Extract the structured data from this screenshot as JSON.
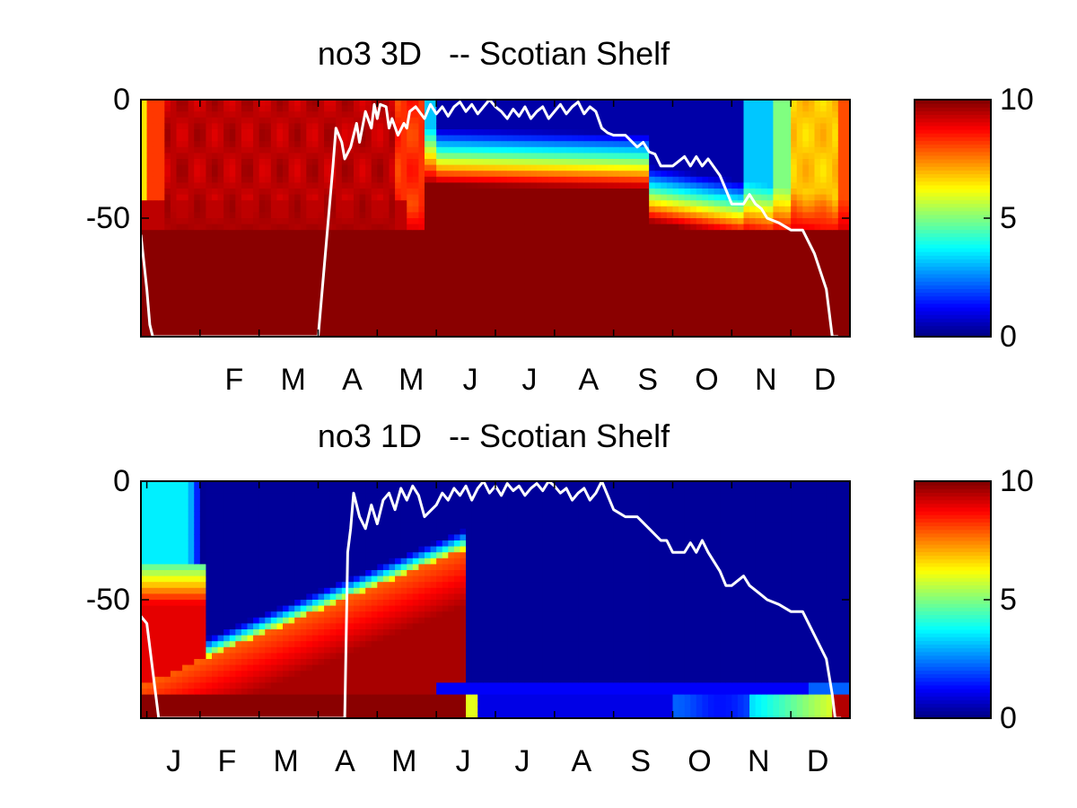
{
  "chart_data": [
    {
      "type": "heatmap",
      "title": "no3 3D   -- Scotian Shelf",
      "ytick_labels": [
        "0",
        "-50"
      ],
      "yticks": [
        0,
        -50
      ],
      "ylim": [
        -100,
        0
      ],
      "xtick_labels": [
        "F",
        "M",
        "A",
        "M",
        "J",
        "J",
        "A",
        "S",
        "O",
        "N",
        "D"
      ],
      "xticks_month_index": [
        1,
        2,
        3,
        4,
        5,
        6,
        7,
        8,
        9,
        10,
        11
      ],
      "xlim_month_index": [
        0,
        12
      ],
      "colorbar": {
        "ticks": [
          0,
          5,
          10
        ],
        "tick_labels": [
          "0",
          "5",
          "10"
        ],
        "colormap": "jet",
        "clim": [
          0,
          10
        ]
      },
      "field_model": "3d",
      "mixed_layer_line": {
        "color": "#ffffff",
        "month": [
          0.0,
          0.1,
          0.15,
          0.2,
          3.0,
          3.25,
          3.3,
          3.35,
          3.4,
          3.45,
          3.55,
          3.65,
          3.7,
          3.8,
          3.9,
          3.95,
          4.0,
          4.05,
          4.15,
          4.2,
          4.25,
          4.35,
          4.45,
          4.5,
          4.55,
          4.65,
          4.8,
          4.9,
          5.0,
          5.1,
          5.2,
          5.3,
          5.4,
          5.5,
          5.6,
          5.7,
          5.8,
          5.9,
          6.0,
          6.1,
          6.2,
          6.3,
          6.4,
          6.5,
          6.6,
          6.7,
          6.8,
          6.9,
          7.0,
          7.1,
          7.2,
          7.3,
          7.4,
          7.5,
          7.6,
          7.7,
          7.8,
          7.9,
          8.0,
          8.2,
          8.4,
          8.5,
          8.6,
          8.7,
          8.8,
          8.9,
          9.0,
          9.2,
          9.3,
          9.4,
          9.5,
          9.6,
          9.8,
          9.9,
          10.0,
          10.2,
          10.3,
          10.4,
          10.5,
          10.6,
          10.8,
          11.0,
          11.2,
          11.4,
          11.6,
          11.65,
          11.7,
          11.75,
          11.8
        ],
        "depth": [
          -57,
          -80,
          -95,
          -100,
          -100,
          -28,
          -12,
          -15,
          -18,
          -25,
          -20,
          -10,
          -18,
          -5,
          -12,
          -2,
          -8,
          -2,
          -3,
          -12,
          -8,
          -15,
          -10,
          -12,
          -5,
          -3,
          -8,
          -2,
          -6,
          -3,
          -7,
          -3,
          -1,
          -5,
          -2,
          -6,
          -3,
          0,
          -3,
          -5,
          -8,
          -4,
          -7,
          -3,
          -8,
          -5,
          -3,
          -8,
          -5,
          -2,
          -6,
          -3,
          -1,
          -6,
          -3,
          -5,
          -12,
          -14,
          -15,
          -15,
          -20,
          -18,
          -22,
          -23,
          -28,
          -28,
          -28,
          -24,
          -28,
          -24,
          -28,
          -25,
          -32,
          -38,
          -44,
          -44,
          -40,
          -44,
          -46,
          -50,
          -52,
          -55,
          -55,
          -65,
          -80,
          -90,
          -100,
          -100,
          -100
        ]
      }
    },
    {
      "type": "heatmap",
      "title": "no3 1D   -- Scotian Shelf",
      "ytick_labels": [
        "0",
        "-50"
      ],
      "yticks": [
        0,
        -50
      ],
      "ylim": [
        -100,
        0
      ],
      "xtick_labels": [
        "J",
        "F",
        "M",
        "A",
        "M",
        "J",
        "J",
        "A",
        "S",
        "O",
        "N",
        "D"
      ],
      "xticks_month_index": [
        0.1,
        1,
        2,
        3,
        4,
        5,
        6,
        7,
        8,
        9,
        10,
        11
      ],
      "xlim_month_index": [
        0,
        12
      ],
      "colorbar": {
        "ticks": [
          0,
          5,
          10
        ],
        "tick_labels": [
          "0",
          "5",
          "10"
        ],
        "colormap": "jet",
        "clim": [
          0,
          10
        ]
      },
      "field_model": "1d",
      "mixed_layer_line": {
        "color": "#ffffff",
        "month": [
          0.0,
          0.1,
          0.2,
          0.3,
          3.45,
          3.5,
          3.55,
          3.6,
          3.65,
          3.7,
          3.8,
          3.9,
          4.0,
          4.1,
          4.2,
          4.3,
          4.4,
          4.5,
          4.6,
          4.7,
          4.8,
          5.0,
          5.1,
          5.2,
          5.3,
          5.4,
          5.5,
          5.6,
          5.7,
          5.8,
          5.9,
          6.0,
          6.1,
          6.2,
          6.3,
          6.4,
          6.5,
          6.6,
          6.7,
          6.8,
          6.9,
          7.0,
          7.1,
          7.2,
          7.3,
          7.4,
          7.5,
          7.6,
          7.7,
          7.8,
          8.0,
          8.2,
          8.4,
          8.6,
          8.8,
          8.9,
          9.0,
          9.2,
          9.3,
          9.4,
          9.5,
          9.6,
          9.8,
          9.9,
          10.0,
          10.2,
          10.3,
          10.4,
          10.5,
          10.6,
          10.8,
          11.0,
          11.2,
          11.4,
          11.6,
          11.7,
          11.75,
          11.8,
          11.85
        ],
        "depth": [
          -57,
          -60,
          -80,
          -100,
          -100,
          -30,
          -20,
          -5,
          -10,
          -15,
          -20,
          -10,
          -18,
          -8,
          -5,
          -12,
          -3,
          -8,
          -2,
          -6,
          -15,
          -10,
          -5,
          -8,
          -3,
          -6,
          -2,
          -8,
          -3,
          0,
          -5,
          -2,
          -6,
          -1,
          -4,
          -2,
          -6,
          -3,
          -1,
          -4,
          0,
          -2,
          -5,
          -3,
          -8,
          -5,
          -3,
          -8,
          -5,
          0,
          -12,
          -15,
          -15,
          -20,
          -25,
          -25,
          -30,
          -30,
          -26,
          -30,
          -25,
          -30,
          -38,
          -44,
          -44,
          -40,
          -44,
          -46,
          -48,
          -50,
          -52,
          -55,
          -55,
          -65,
          -75,
          -90,
          -100,
          -100,
          -100
        ]
      }
    }
  ]
}
